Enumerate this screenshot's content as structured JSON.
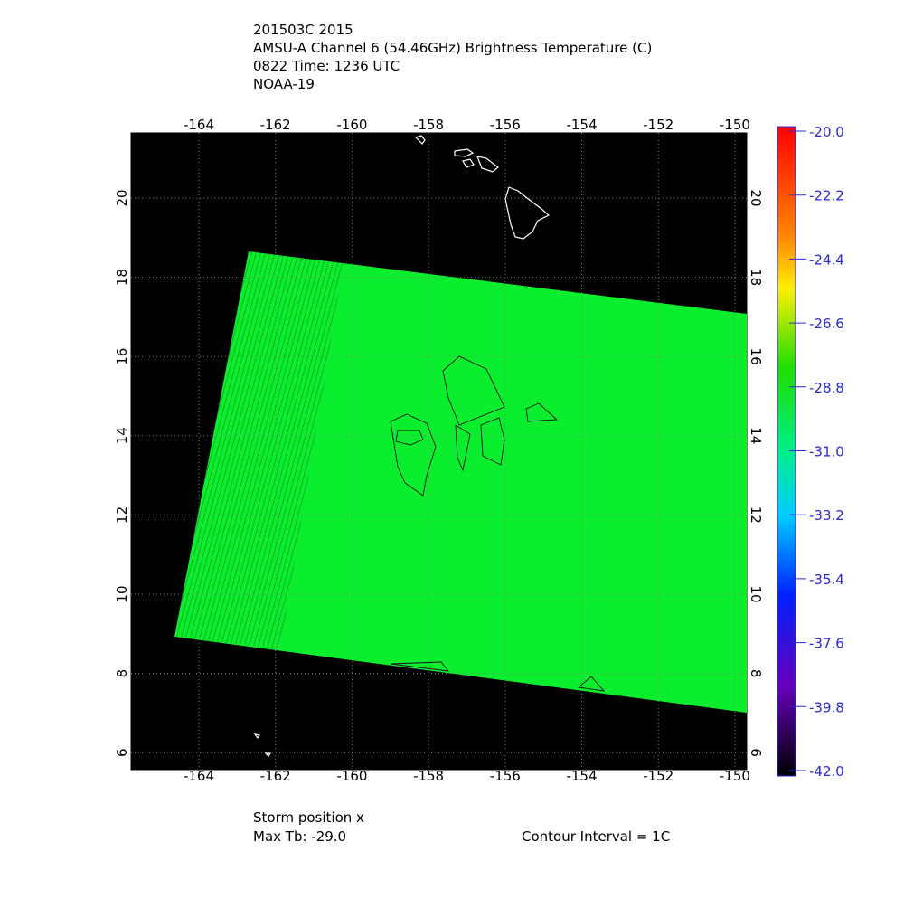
{
  "header": {
    "lines": [
      "201503C 2015",
      "AMSU-A Channel 6 (54.46GHz) Brightness Temperature (C)",
      "0822 Time: 1236 UTC",
      "NOAA-19"
    ]
  },
  "map": {
    "lon_labels": [
      "-164",
      "-162",
      "-160",
      "-158",
      "-156",
      "-154",
      "-152",
      "-150"
    ],
    "lat_labels": [
      "20",
      "18",
      "16",
      "14",
      "12",
      "10",
      "8",
      "6"
    ]
  },
  "colorbar": {
    "labels": [
      "-20.0",
      "-22.2",
      "-24.4",
      "-26.6",
      "-28.8",
      "-31.0",
      "-33.2",
      "-35.4",
      "-37.6",
      "-39.8",
      "-42.0"
    ]
  },
  "footer": {
    "storm": "Storm position x",
    "max_tb": "Max Tb: -29.0",
    "contour": "Contour Interval = 1C"
  }
}
